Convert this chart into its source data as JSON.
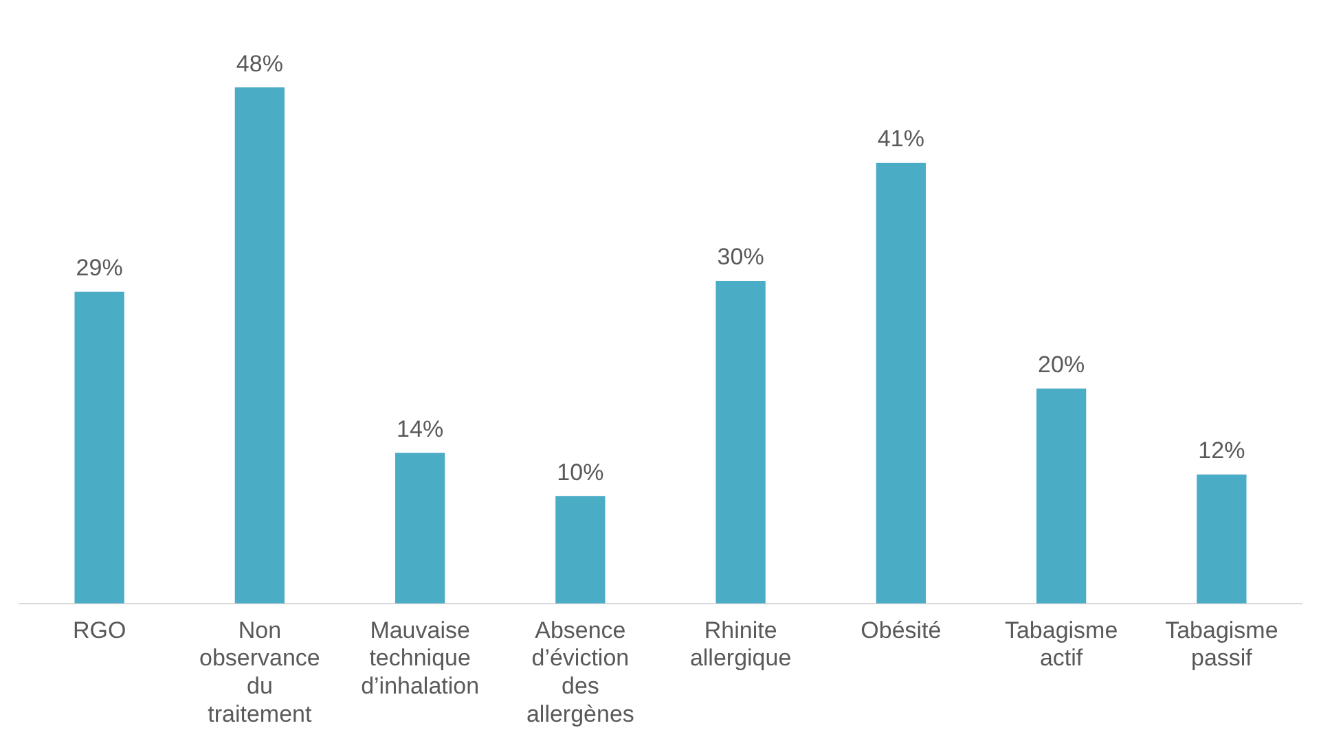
{
  "chart_data": {
    "type": "bar",
    "categories": [
      "RGO",
      "Non observance du traitement",
      "Mauvaise technique d’inhalation",
      "Absence d’éviction des allergènes",
      "Rhinite allergique",
      "Obésité",
      "Tabagisme actif",
      "Tabagisme passif"
    ],
    "values": [
      29,
      48,
      14,
      10,
      30,
      41,
      20,
      12
    ],
    "value_labels": [
      "29%",
      "48%",
      "14%",
      "10%",
      "30%",
      "41%",
      "20%",
      "12%"
    ],
    "color": "#4bacc6",
    "grid": false,
    "legend": false
  }
}
